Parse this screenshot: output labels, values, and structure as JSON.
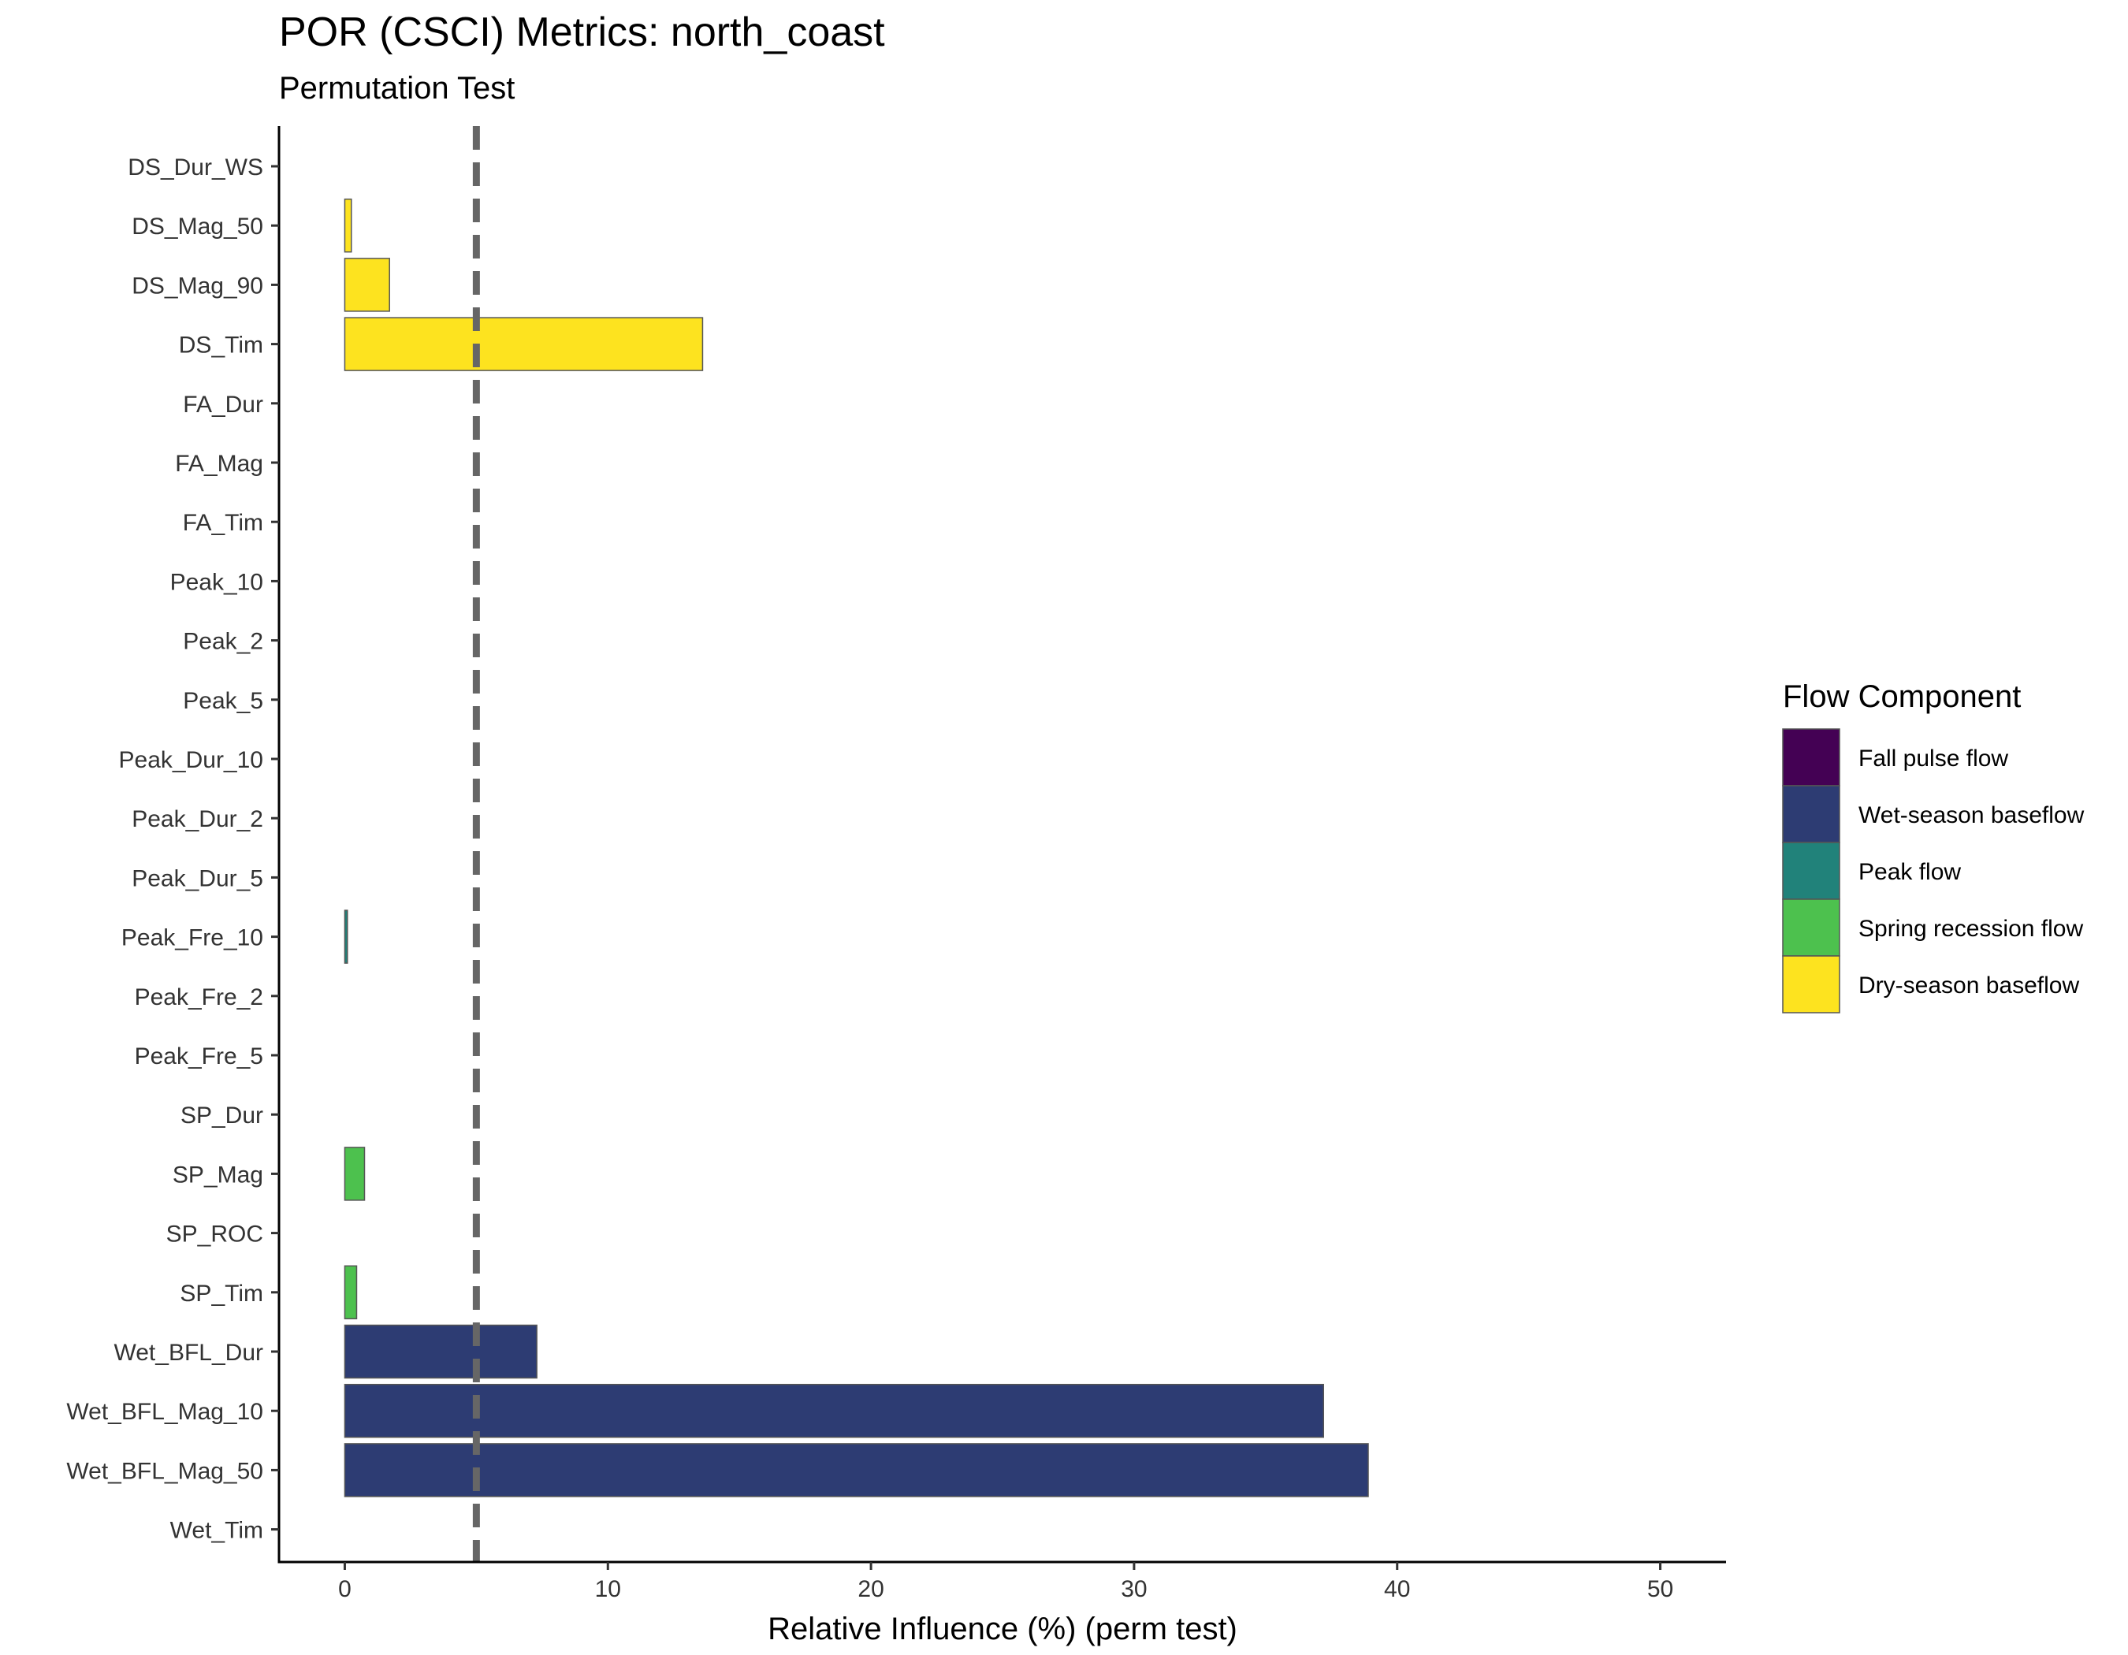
{
  "chart_data": {
    "type": "bar",
    "orientation": "horizontal",
    "title": "POR (CSCI) Metrics: north_coast",
    "subtitle": "Permutation Test",
    "xlabel": "Relative Influence (%) (perm test)",
    "ylabel": "",
    "xlim": [
      -2.5,
      52.5
    ],
    "xticks": [
      0,
      10,
      20,
      30,
      40,
      50
    ],
    "reference_line": {
      "x": 5,
      "style": "dashed",
      "color": "#666666"
    },
    "grid": false,
    "legend": {
      "title": "Flow Component",
      "placement": "right",
      "entries": [
        {
          "name": "Fall pulse flow",
          "color": "#440154"
        },
        {
          "name": "Wet-season baseflow",
          "color": "#2D3C73"
        },
        {
          "name": "Peak flow",
          "color": "#21827A"
        },
        {
          "name": "Spring recession flow",
          "color": "#4DC14E"
        },
        {
          "name": "Dry-season baseflow",
          "color": "#FDE31F"
        }
      ]
    },
    "bars": [
      {
        "category": "DS_Dur_WS",
        "value": 0.0,
        "component": "Dry-season baseflow"
      },
      {
        "category": "DS_Mag_50",
        "value": 0.25,
        "component": "Dry-season baseflow"
      },
      {
        "category": "DS_Mag_90",
        "value": 1.7,
        "component": "Dry-season baseflow"
      },
      {
        "category": "DS_Tim",
        "value": 13.6,
        "component": "Dry-season baseflow"
      },
      {
        "category": "FA_Dur",
        "value": 0.0,
        "component": "Fall pulse flow"
      },
      {
        "category": "FA_Mag",
        "value": 0.0,
        "component": "Fall pulse flow"
      },
      {
        "category": "FA_Tim",
        "value": 0.0,
        "component": "Fall pulse flow"
      },
      {
        "category": "Peak_10",
        "value": 0.0,
        "component": "Peak flow"
      },
      {
        "category": "Peak_2",
        "value": 0.0,
        "component": "Peak flow"
      },
      {
        "category": "Peak_5",
        "value": 0.0,
        "component": "Peak flow"
      },
      {
        "category": "Peak_Dur_10",
        "value": 0.0,
        "component": "Peak flow"
      },
      {
        "category": "Peak_Dur_2",
        "value": 0.0,
        "component": "Peak flow"
      },
      {
        "category": "Peak_Dur_5",
        "value": 0.0,
        "component": "Peak flow"
      },
      {
        "category": "Peak_Fre_10",
        "value": 0.1,
        "component": "Peak flow"
      },
      {
        "category": "Peak_Fre_2",
        "value": 0.0,
        "component": "Peak flow"
      },
      {
        "category": "Peak_Fre_5",
        "value": 0.0,
        "component": "Peak flow"
      },
      {
        "category": "SP_Dur",
        "value": 0.0,
        "component": "Spring recession flow"
      },
      {
        "category": "SP_Mag",
        "value": 0.75,
        "component": "Spring recession flow"
      },
      {
        "category": "SP_ROC",
        "value": 0.0,
        "component": "Spring recession flow"
      },
      {
        "category": "SP_Tim",
        "value": 0.45,
        "component": "Spring recession flow"
      },
      {
        "category": "Wet_BFL_Dur",
        "value": 7.3,
        "component": "Wet-season baseflow"
      },
      {
        "category": "Wet_BFL_Mag_10",
        "value": 37.2,
        "component": "Wet-season baseflow"
      },
      {
        "category": "Wet_BFL_Mag_50",
        "value": 38.9,
        "component": "Wet-season baseflow"
      },
      {
        "category": "Wet_Tim",
        "value": 0.0,
        "component": "Wet-season baseflow"
      }
    ]
  }
}
